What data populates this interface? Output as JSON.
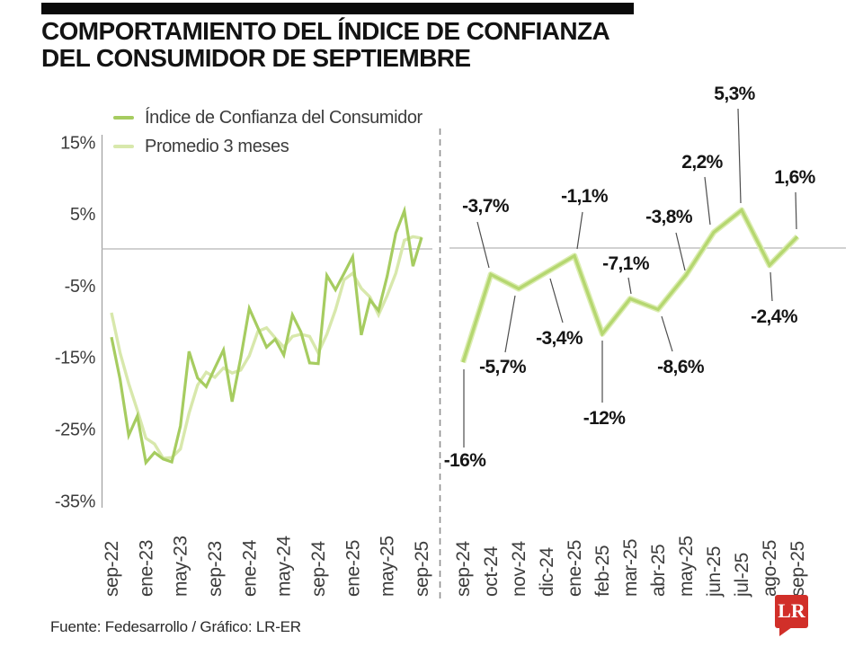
{
  "header": {
    "title_line1": "COMPORTAMIENTO DEL ÍNDICE DE CONFIANZA",
    "title_line2": "DEL CONSUMIDOR DE SEPTIEMBRE"
  },
  "legend": {
    "items": [
      {
        "label": "Índice de Confianza del Consumidor",
        "color": "#a6cc60"
      },
      {
        "label": "Promedio 3 meses",
        "color": "#d8e8ac"
      }
    ]
  },
  "chart_data": [
    {
      "id": "icc-historical",
      "type": "line",
      "title": "",
      "xlabel": "",
      "ylabel": "",
      "ylim": [
        -37,
        16
      ],
      "grid": "zero-line-only",
      "x": [
        "sep-22",
        "oct-22",
        "nov-22",
        "dic-22",
        "ene-23",
        "feb-23",
        "mar-23",
        "abr-23",
        "may-23",
        "jun-23",
        "jul-23",
        "ago-23",
        "sep-23",
        "oct-23",
        "nov-23",
        "dic-23",
        "ene-24",
        "feb-24",
        "mar-24",
        "abr-24",
        "may-24",
        "jun-24",
        "jul-24",
        "ago-24",
        "sep-24",
        "oct-24",
        "nov-24",
        "dic-24",
        "ene-25",
        "feb-25",
        "mar-25",
        "abr-25",
        "may-25",
        "jun-25",
        "jul-25",
        "ago-25",
        "sep-25"
      ],
      "x_tick_labels": [
        "sep-22",
        "ene-23",
        "may-23",
        "sep-23",
        "ene-24",
        "may-24",
        "sep-24",
        "ene-25",
        "may-25",
        "sep-25"
      ],
      "y_ticks": [
        15,
        5,
        -5,
        -15,
        -25,
        -35
      ],
      "y_tick_labels": [
        "15%",
        "5%",
        "-5%",
        "-15%",
        "-25%",
        "-35%"
      ],
      "series": [
        {
          "name": "Índice de Confianza del Consumidor",
          "color": "#a6cc60",
          "values": [
            -12.3,
            -18.2,
            -26.0,
            -23.3,
            -29.8,
            -28.4,
            -29.3,
            -29.7,
            -24.7,
            -14.3,
            -18.0,
            -19.2,
            -16.6,
            -14.1,
            -21.3,
            -15.2,
            -8.3,
            -11.0,
            -13.7,
            -12.6,
            -14.8,
            -9.2,
            -11.6,
            -15.9,
            -16.0,
            -3.7,
            -5.7,
            -3.4,
            -1.1,
            -12.0,
            -7.1,
            -8.6,
            -3.8,
            2.2,
            5.3,
            -2.4,
            1.6
          ]
        },
        {
          "name": "Promedio 3 meses",
          "color": "#d8e8ac",
          "values": [
            -8.9,
            -14.5,
            -18.8,
            -22.5,
            -26.4,
            -27.2,
            -29.2,
            -29.1,
            -27.9,
            -22.9,
            -19.0,
            -17.2,
            -17.9,
            -16.6,
            -17.3,
            -16.9,
            -14.9,
            -11.5,
            -11.0,
            -12.4,
            -13.7,
            -12.2,
            -11.9,
            -12.2,
            -14.5,
            -11.9,
            -8.5,
            -4.3,
            -3.4,
            -5.5,
            -6.7,
            -9.2,
            -6.5,
            -3.4,
            1.2,
            1.7,
            1.5
          ]
        }
      ]
    },
    {
      "id": "icc-last-13-months",
      "type": "line",
      "title": "",
      "grid": "zero-line-only",
      "color": "#b5d770",
      "categories": [
        "sep-24",
        "oct-24",
        "nov-24",
        "dic-24",
        "ene-25",
        "feb-25",
        "mar-25",
        "abr-25",
        "may-25",
        "jun-25",
        "jul-25",
        "ago-25",
        "sep-25"
      ],
      "values": [
        -16,
        -3.7,
        -5.7,
        -3.4,
        -1.1,
        -12,
        -7.1,
        -8.6,
        -3.8,
        2.2,
        5.3,
        -2.4,
        1.6
      ],
      "point_labels": [
        "-16%",
        "-3,7%",
        "-5,7%",
        "-3,4%",
        "-1,1%",
        "-12%",
        "-7,1%",
        "-8,6%",
        "-3,8%",
        "2,2%",
        "5,3%",
        "-2,4%",
        "1,6%"
      ]
    }
  ],
  "footer": {
    "source": "Fuente: Fedesarrollo / Gráfico: LR-ER",
    "logo_text": "LR",
    "logo_color": "#d12f29"
  }
}
